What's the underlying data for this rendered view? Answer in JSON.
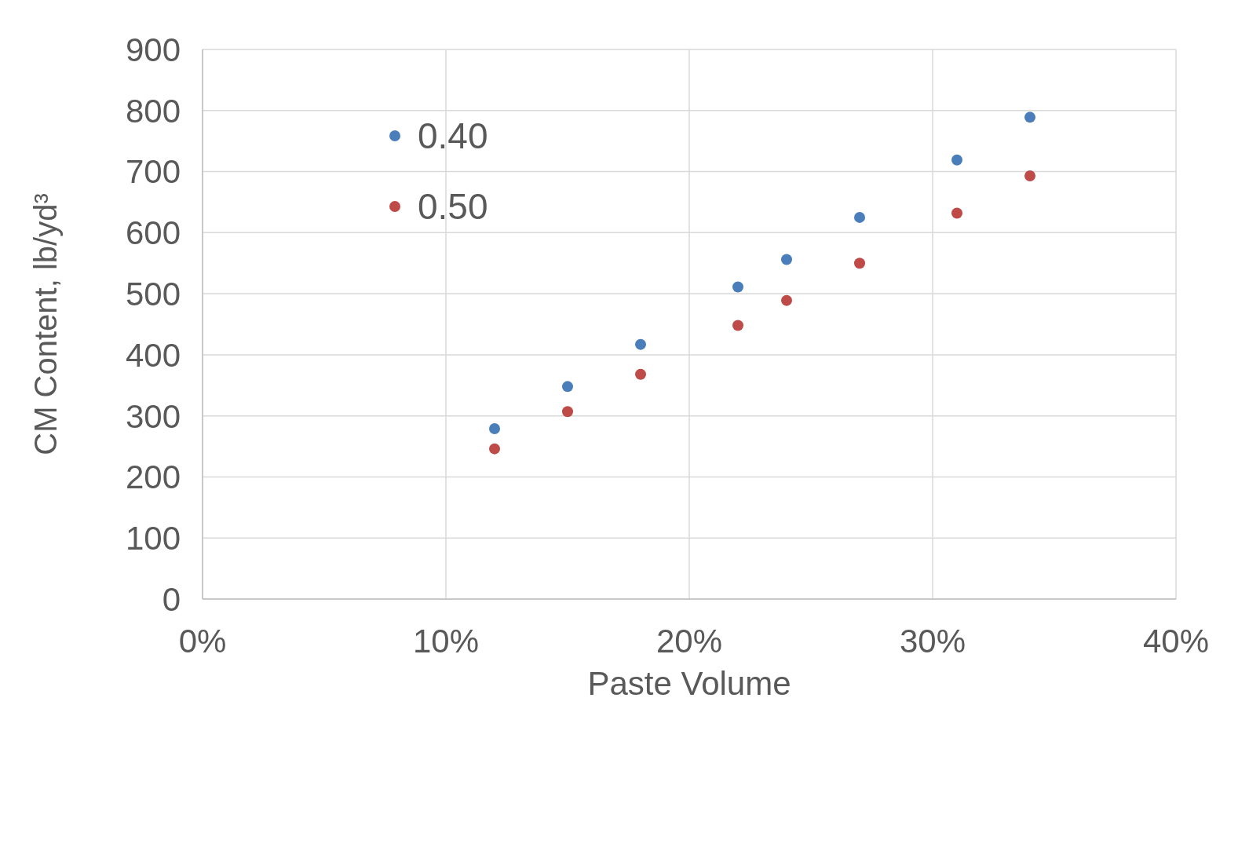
{
  "chart_data": {
    "type": "scatter",
    "xlabel": "Paste Volume",
    "ylabel": "CM Content, lb/yd³",
    "x": [
      12,
      15,
      18,
      22,
      24,
      27,
      31,
      34
    ],
    "series": [
      {
        "name": "0.40",
        "color": "#4a7ebb",
        "values": [
          279,
          348,
          417,
          511,
          556,
          625,
          719,
          789
        ]
      },
      {
        "name": "0.50",
        "color": "#be4b48",
        "values": [
          246,
          307,
          368,
          448,
          489,
          550,
          632,
          693
        ]
      }
    ],
    "xlim": [
      0,
      40
    ],
    "xticks": [
      {
        "value": 0,
        "label": "0%"
      },
      {
        "value": 10,
        "label": "10%"
      },
      {
        "value": 20,
        "label": "20%"
      },
      {
        "value": 30,
        "label": "30%"
      },
      {
        "value": 40,
        "label": "40%"
      }
    ],
    "ylim": [
      0,
      900
    ],
    "yticks": [
      0,
      100,
      200,
      300,
      400,
      500,
      600,
      700,
      800,
      900
    ],
    "grid": true,
    "legend": "top left",
    "marker": "circle"
  }
}
